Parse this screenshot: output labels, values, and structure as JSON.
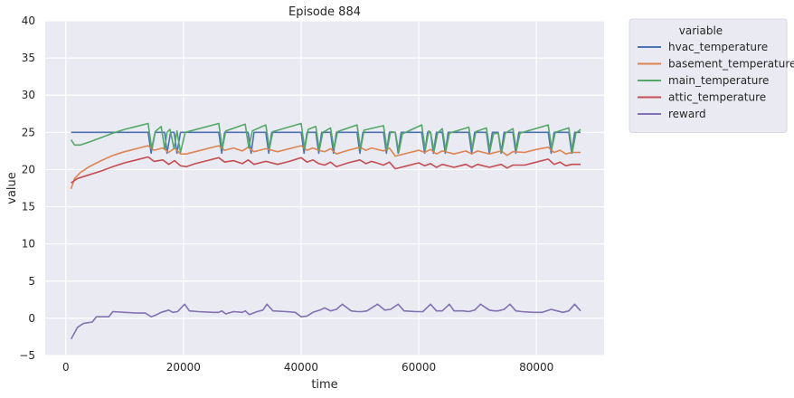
{
  "chart_data": {
    "type": "line",
    "title": "Episode 884",
    "xlabel": "time",
    "ylabel": "value",
    "xlim": [
      -3500,
      91500
    ],
    "ylim": [
      -5,
      40
    ],
    "xticks": [
      0,
      20000,
      40000,
      60000,
      80000
    ],
    "xtick_labels": [
      "0",
      "20000",
      "40000",
      "60000",
      "80000"
    ],
    "yticks": [
      -5,
      0,
      5,
      10,
      15,
      20,
      25,
      30,
      35,
      40
    ],
    "ytick_labels": [
      "−5",
      "0",
      "5",
      "10",
      "15",
      "20",
      "25",
      "30",
      "35",
      "40"
    ],
    "grid": true,
    "background": "#eaeaf2",
    "legend": {
      "title": "variable",
      "placement": "outside-top-right"
    },
    "series": [
      {
        "name": "hvac_temperature",
        "color": "#4c72b0",
        "x": [
          900,
          14000,
          14500,
          15200,
          16800,
          17200,
          17800,
          18400,
          18900,
          19500,
          20200,
          26000,
          26500,
          27000,
          31000,
          31500,
          32000,
          34000,
          34500,
          35000,
          40000,
          40500,
          41000,
          42500,
          43000,
          43500,
          45000,
          45500,
          46000,
          49500,
          50000,
          50500,
          54000,
          54500,
          55000,
          56000,
          56500,
          57000,
          60500,
          61000,
          61500,
          62000,
          62500,
          63000,
          64000,
          64500,
          65000,
          68500,
          69000,
          69500,
          71500,
          72000,
          72500,
          73500,
          74000,
          74500,
          76000,
          76500,
          77000,
          82000,
          82500,
          83000,
          85500,
          86000,
          86500,
          87500
        ],
        "y": [
          25,
          25,
          22.2,
          25,
          25,
          22.2,
          25,
          25,
          22.2,
          25,
          25,
          25,
          22.2,
          25,
          25,
          22.2,
          25,
          25,
          22.2,
          25,
          25,
          22.2,
          25,
          25,
          22.2,
          25,
          25,
          22.2,
          25,
          25,
          22.2,
          25,
          25,
          22.2,
          25,
          25,
          22.2,
          25,
          25,
          22.2,
          25,
          25,
          22.2,
          25,
          25,
          22.2,
          25,
          25,
          22.2,
          25,
          25,
          22.2,
          25,
          25,
          22.2,
          25,
          25,
          22.2,
          25,
          25,
          22.2,
          25,
          25,
          22.2,
          25,
          25
        ]
      },
      {
        "name": "basement_temperature",
        "color": "#dd8452",
        "x": [
          900,
          1500,
          2500,
          4000,
          6000,
          8000,
          10000,
          12000,
          14000,
          15000,
          16500,
          17500,
          18500,
          19500,
          20500,
          22000,
          24000,
          26000,
          27000,
          28500,
          30000,
          31000,
          32000,
          34000,
          36000,
          38000,
          40000,
          41000,
          42000,
          43000,
          44000,
          45000,
          46000,
          48000,
          50000,
          51000,
          52000,
          54000,
          55000,
          56000,
          58000,
          60000,
          61000,
          62000,
          63000,
          64000,
          66000,
          68000,
          69000,
          70000,
          72000,
          74000,
          75000,
          76000,
          78000,
          80000,
          82000,
          83000,
          84000,
          85000,
          86000,
          87500
        ],
        "y": [
          17.4,
          18.8,
          19.6,
          20.4,
          21.2,
          21.9,
          22.4,
          22.8,
          23.2,
          22.6,
          22.9,
          22.3,
          22.9,
          22.1,
          22.1,
          22.4,
          22.8,
          23.2,
          22.6,
          22.9,
          22.5,
          23.0,
          22.4,
          22.8,
          22.4,
          22.8,
          23.2,
          22.6,
          22.9,
          22.6,
          22.4,
          22.8,
          22.1,
          22.6,
          23.0,
          22.6,
          22.9,
          22.5,
          22.9,
          21.8,
          22.2,
          22.6,
          22.3,
          22.7,
          22.1,
          22.5,
          22.1,
          22.5,
          22.1,
          22.5,
          22.1,
          22.5,
          21.9,
          22.4,
          22.3,
          22.7,
          23.0,
          22.3,
          22.6,
          22.1,
          22.3,
          22.3
        ]
      },
      {
        "name": "main_temperature",
        "color": "#55a868",
        "x": [
          900,
          1500,
          2500,
          4000,
          6000,
          8000,
          10000,
          12000,
          14000,
          14600,
          15200,
          16200,
          16800,
          17200,
          17700,
          18400,
          18900,
          19500,
          20300,
          26000,
          26600,
          27200,
          30500,
          31100,
          31700,
          34000,
          34600,
          35200,
          40000,
          40600,
          41200,
          42500,
          43100,
          43700,
          45000,
          45600,
          46200,
          49500,
          50100,
          50700,
          54000,
          54600,
          55200,
          56000,
          56600,
          57200,
          60500,
          61100,
          61700,
          62000,
          62600,
          63200,
          64000,
          64600,
          65200,
          68500,
          69100,
          69700,
          71500,
          72100,
          72700,
          73500,
          74100,
          74700,
          76000,
          76600,
          77200,
          82000,
          82600,
          83200,
          85500,
          86100,
          86700,
          87500
        ],
        "y": [
          24.0,
          23.3,
          23.3,
          23.7,
          24.3,
          24.9,
          25.4,
          25.8,
          26.2,
          22.8,
          25.1,
          25.8,
          22.8,
          25.0,
          25.4,
          22.8,
          25.2,
          22.3,
          25.0,
          26.2,
          22.8,
          25.2,
          26.1,
          22.9,
          25.2,
          26.0,
          22.8,
          25.1,
          26.2,
          22.8,
          25.4,
          25.8,
          22.6,
          25.0,
          25.6,
          22.8,
          25.1,
          26.0,
          22.7,
          25.3,
          25.9,
          22.6,
          25.1,
          25.0,
          22.3,
          24.8,
          26.0,
          22.6,
          25.2,
          25.0,
          22.5,
          24.9,
          25.5,
          22.5,
          24.9,
          25.7,
          22.7,
          25.1,
          25.6,
          22.5,
          24.8,
          24.9,
          22.3,
          24.9,
          25.5,
          22.6,
          24.9,
          26.0,
          22.8,
          25.0,
          25.6,
          22.3,
          24.9,
          25.4
        ]
      },
      {
        "name": "attic_temperature",
        "color": "#c44e52",
        "x": [
          900,
          2000,
          4000,
          6000,
          8000,
          10000,
          12000,
          14000,
          15000,
          16500,
          17500,
          18500,
          19500,
          20500,
          22000,
          24000,
          26000,
          27000,
          28500,
          30000,
          31000,
          32000,
          34000,
          36000,
          38000,
          40000,
          41000,
          42000,
          43000,
          44000,
          45000,
          46000,
          48000,
          50000,
          51000,
          52000,
          54000,
          55000,
          56000,
          58000,
          60000,
          61000,
          62000,
          63000,
          64000,
          66000,
          68000,
          69000,
          70000,
          72000,
          74000,
          75000,
          76000,
          78000,
          80000,
          82000,
          83000,
          84000,
          85000,
          86000,
          87500
        ],
        "y": [
          18.2,
          18.8,
          19.3,
          19.8,
          20.4,
          20.9,
          21.3,
          21.7,
          21.1,
          21.3,
          20.7,
          21.2,
          20.5,
          20.4,
          20.8,
          21.2,
          21.6,
          21.0,
          21.2,
          20.8,
          21.3,
          20.7,
          21.1,
          20.7,
          21.1,
          21.6,
          21.0,
          21.3,
          20.8,
          20.6,
          21.0,
          20.4,
          20.9,
          21.3,
          20.8,
          21.1,
          20.6,
          21.0,
          20.1,
          20.5,
          20.9,
          20.5,
          20.8,
          20.3,
          20.7,
          20.3,
          20.7,
          20.3,
          20.7,
          20.3,
          20.7,
          20.2,
          20.6,
          20.6,
          21.0,
          21.4,
          20.7,
          21.0,
          20.5,
          20.7,
          20.7
        ]
      },
      {
        "name": "reward",
        "color": "#8172b2",
        "x": [
          900,
          2000,
          3000,
          4500,
          5200,
          6000,
          7300,
          8000,
          10000,
          12000,
          13500,
          14500,
          15200,
          16200,
          17500,
          18200,
          19000,
          20200,
          21000,
          22500,
          25000,
          26000,
          26500,
          27200,
          28500,
          30000,
          30500,
          31200,
          32500,
          33500,
          34200,
          35200,
          37500,
          39000,
          40000,
          41000,
          42000,
          43200,
          44000,
          45000,
          46000,
          47000,
          48500,
          49500,
          50300,
          51200,
          53000,
          54200,
          55200,
          56500,
          57500,
          59500,
          60700,
          62000,
          63000,
          64000,
          65200,
          66000,
          67500,
          68500,
          69500,
          70500,
          72000,
          72800,
          73500,
          74500,
          75500,
          76500,
          77500,
          79500,
          81000,
          82500,
          83500,
          84500,
          85500,
          86500,
          87500
        ],
        "y": [
          -2.8,
          -1.2,
          -0.7,
          -0.5,
          0.2,
          0.2,
          0.2,
          0.9,
          0.8,
          0.7,
          0.7,
          0.2,
          0.4,
          0.8,
          1.1,
          0.8,
          0.9,
          1.9,
          1.0,
          0.9,
          0.8,
          0.8,
          1.0,
          0.6,
          0.9,
          0.8,
          1.0,
          0.5,
          0.9,
          1.1,
          1.9,
          1.0,
          0.9,
          0.8,
          0.2,
          0.3,
          0.8,
          1.1,
          1.4,
          1.0,
          1.2,
          1.9,
          1.0,
          0.9,
          0.9,
          1.0,
          1.9,
          1.1,
          1.2,
          1.9,
          1.0,
          0.9,
          0.9,
          1.9,
          1.0,
          1.0,
          1.9,
          1.0,
          1.0,
          0.9,
          1.1,
          1.9,
          1.1,
          1.0,
          1.0,
          1.2,
          1.9,
          1.0,
          0.9,
          0.8,
          0.8,
          1.2,
          1.0,
          0.8,
          1.0,
          1.9,
          1.0
        ]
      }
    ]
  }
}
